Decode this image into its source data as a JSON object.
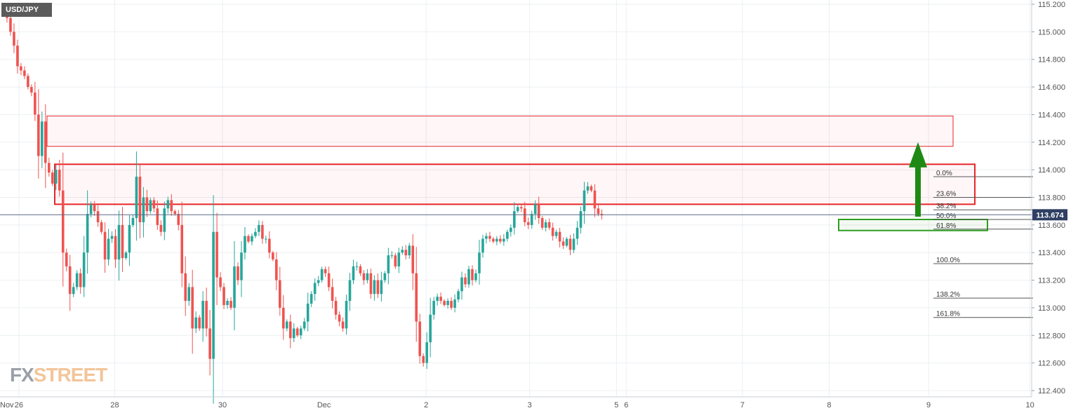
{
  "symbol": "USD/JPY",
  "watermark": {
    "part1": "FX",
    "part2": "STREET"
  },
  "current_price_label": "113.674",
  "colors": {
    "up": "#26a69a",
    "down": "#ef5350",
    "resistance": "#e8262a",
    "support": "#2e9e22",
    "arrow": "#1e8a14",
    "grid": "#eceff2",
    "price_line": "#5a6b8a",
    "price_tag_bg": "#2f3f63"
  },
  "chart_data": {
    "type": "candlestick",
    "title": "",
    "ylim": [
      112.4,
      115.2
    ],
    "y_ticks": [
      "115.200",
      "115.000",
      "114.800",
      "114.600",
      "114.400",
      "114.200",
      "114.000",
      "113.800",
      "113.600",
      "113.400",
      "113.200",
      "113.000",
      "112.800",
      "112.600",
      "112.400"
    ],
    "x_ticks": [
      {
        "label": "Nov",
        "pos": 0.0
      },
      {
        "label": "26",
        "pos": 4.4
      },
      {
        "label": "28",
        "pos": 31.8
      },
      {
        "label": "30",
        "pos": 62.6
      },
      {
        "label": "Dec",
        "pos": 91.6
      },
      {
        "label": "2",
        "pos": 120.8
      },
      {
        "label": "3",
        "pos": 150.4
      },
      {
        "label": "5",
        "pos": 175.2
      },
      {
        "label": "6",
        "pos": 178.0
      },
      {
        "label": "7",
        "pos": 211.2
      },
      {
        "label": "8",
        "pos": 236.0
      },
      {
        "label": "9",
        "pos": 264.4
      },
      {
        "label": "10",
        "pos": 293.4
      }
    ],
    "candles_close": [
      115.17,
      115.1,
      115.0,
      114.9,
      114.75,
      114.72,
      114.68,
      114.6,
      114.56,
      114.4,
      114.1,
      114.35,
      114.05,
      113.98,
      113.9,
      114.0,
      113.85,
      113.4,
      113.3,
      113.1,
      113.15,
      113.25,
      113.15,
      113.4,
      113.68,
      113.75,
      113.7,
      113.62,
      113.55,
      113.35,
      113.5,
      113.52,
      113.35,
      113.6,
      113.36,
      113.4,
      113.6,
      113.65,
      113.95,
      113.62,
      113.8,
      113.7,
      113.78,
      113.72,
      113.6,
      113.55,
      113.72,
      113.78,
      113.7,
      113.68,
      113.6,
      113.25,
      113.05,
      113.15,
      112.85,
      112.93,
      112.85,
      113.05,
      112.85,
      112.63,
      113.55,
      113.22,
      113.15,
      113.02,
      113.05,
      113.0,
      113.3,
      113.2,
      113.4,
      113.52,
      113.48,
      113.52,
      113.55,
      113.6,
      113.5,
      113.5,
      113.4,
      113.35,
      113.2,
      113.0,
      112.85,
      112.9,
      112.78,
      112.85,
      112.8,
      112.85,
      112.9,
      113.03,
      113.1,
      113.18,
      113.2,
      113.28,
      113.25,
      113.15,
      113.05,
      112.95,
      112.9,
      112.85,
      113.05,
      113.2,
      113.3,
      113.3,
      113.25,
      113.2,
      113.25,
      113.1,
      113.2,
      113.1,
      113.2,
      113.25,
      113.38,
      113.38,
      113.3,
      113.4,
      113.42,
      113.38,
      113.45,
      113.25,
      112.9,
      112.65,
      112.6,
      112.75,
      112.95,
      113.05,
      113.08,
      113.05,
      113.02,
      113.05,
      113.0,
      113.06,
      113.12,
      113.22,
      113.17,
      113.28,
      113.2,
      113.25,
      113.4,
      113.5,
      113.52,
      113.5,
      113.48,
      113.5,
      113.48,
      113.5,
      113.55,
      113.58,
      113.7,
      113.73,
      113.72,
      113.62,
      113.6,
      113.68,
      113.75,
      113.65,
      113.58,
      113.62,
      113.58,
      113.52,
      113.55,
      113.48,
      113.45,
      113.5,
      113.42,
      113.5,
      113.58,
      113.7,
      113.85,
      113.88,
      113.85,
      113.72,
      113.68,
      113.67
    ],
    "resistance_zones": [
      {
        "from": 114.17,
        "to": 114.39,
        "style": "thin"
      },
      {
        "from": 113.75,
        "to": 114.04,
        "style": "thick"
      }
    ],
    "support_zone": {
      "from": 113.56,
      "to": 113.64
    },
    "fibonacci": [
      {
        "label": "0.0%",
        "value": 113.95
      },
      {
        "label": "23.6%",
        "value": 113.8
      },
      {
        "label": "38.2%",
        "value": 113.71
      },
      {
        "label": "50.0%",
        "value": 113.64
      },
      {
        "label": "61.8%",
        "value": 113.57
      },
      {
        "label": "100.0%",
        "value": 113.32
      },
      {
        "label": "138.2%",
        "value": 113.07
      },
      {
        "label": "161.8%",
        "value": 112.93
      }
    ],
    "current_price": 113.674,
    "arrow": {
      "from": 113.66,
      "to": 114.2
    }
  }
}
